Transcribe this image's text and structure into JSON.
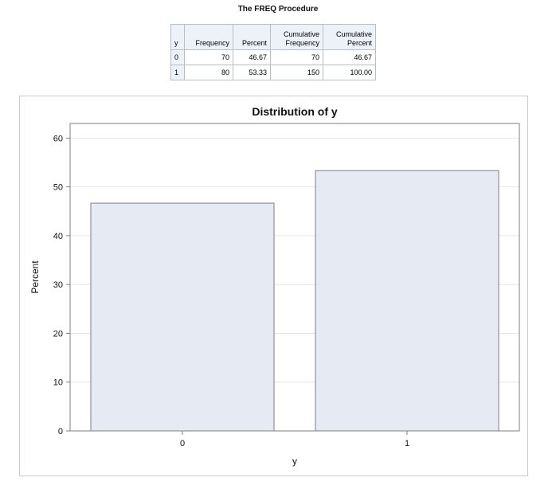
{
  "procedure_title": "The FREQ Procedure",
  "table": {
    "headers": [
      "y",
      "Frequency",
      "Percent",
      "Cumulative\nFrequency",
      "Cumulative\nPercent"
    ],
    "rows": [
      [
        "0",
        "70",
        "46.67",
        "70",
        "46.67"
      ],
      [
        "1",
        "80",
        "53.33",
        "150",
        "100.00"
      ]
    ]
  },
  "chart_data": {
    "type": "bar",
    "title": "Distribution of y",
    "xlabel": "y",
    "ylabel": "Percent",
    "categories": [
      "0",
      "1"
    ],
    "values": [
      46.67,
      53.33
    ],
    "ylim": [
      0,
      63
    ],
    "yticks": [
      0,
      10,
      20,
      30,
      40,
      50,
      60
    ],
    "grid": true,
    "legend": "none",
    "colors": {
      "bar_fill": "#e5eaf3",
      "bar_stroke": "#7f7f7f",
      "axis": "#7f7f7f",
      "grid": "#e6e6e6"
    }
  }
}
